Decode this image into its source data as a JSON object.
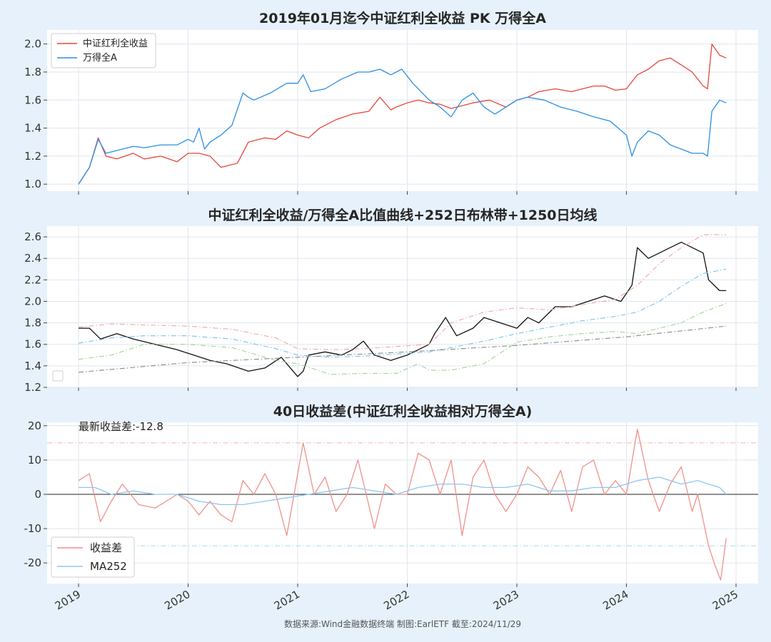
{
  "footer": {
    "source": "数据来源:Wind金融数据终端  制图:EarlETF 截至:2024/11/29"
  },
  "x_axis": {
    "ticks": [
      "2019",
      "2020",
      "2021",
      "2022",
      "2023",
      "2024",
      "2025"
    ]
  },
  "colors": {
    "red": "#e8453c",
    "blue": "#2b8fe3",
    "black": "#111111",
    "band_upper": "#f2a6a6",
    "band_mid": "#7cc0ee",
    "band_lower": "#9fd49a",
    "ma1250": "#888888",
    "diff": "#f0918a",
    "ma252": "#8ac8f0",
    "background": "#e6f1fb"
  },
  "chart_data": [
    {
      "type": "line",
      "title": "2019年01月迄今中证红利全收益 PK 万得全A",
      "xlabel": "",
      "ylabel": "",
      "xlim": [
        2019.0,
        2024.91
      ],
      "ylim": [
        0.95,
        2.1
      ],
      "yticks": [
        "1.0",
        "1.2",
        "1.4",
        "1.6",
        "1.8",
        "2.0"
      ],
      "legend_position": "top-left",
      "grid": true,
      "series": [
        {
          "name": "中证红利全收益",
          "color": "#e8453c",
          "x": [
            2019.0,
            2019.1,
            2019.18,
            2019.25,
            2019.35,
            2019.5,
            2019.6,
            2019.75,
            2019.9,
            2020.0,
            2020.1,
            2020.2,
            2020.3,
            2020.45,
            2020.55,
            2020.7,
            2020.8,
            2020.9,
            2021.0,
            2021.1,
            2021.2,
            2021.35,
            2021.5,
            2021.65,
            2021.75,
            2021.85,
            2021.9,
            2022.0,
            2022.1,
            2022.2,
            2022.3,
            2022.4,
            2022.5,
            2022.6,
            2022.75,
            2022.9,
            2023.0,
            2023.1,
            2023.2,
            2023.35,
            2023.5,
            2023.6,
            2023.7,
            2023.8,
            2023.9,
            2024.0,
            2024.1,
            2024.2,
            2024.3,
            2024.4,
            2024.5,
            2024.6,
            2024.7,
            2024.74,
            2024.78,
            2024.85,
            2024.91
          ],
          "y": [
            1.0,
            1.12,
            1.33,
            1.2,
            1.18,
            1.22,
            1.18,
            1.2,
            1.16,
            1.22,
            1.22,
            1.2,
            1.12,
            1.15,
            1.3,
            1.33,
            1.32,
            1.38,
            1.35,
            1.33,
            1.4,
            1.46,
            1.5,
            1.52,
            1.62,
            1.53,
            1.55,
            1.58,
            1.6,
            1.58,
            1.57,
            1.54,
            1.56,
            1.58,
            1.6,
            1.55,
            1.6,
            1.62,
            1.66,
            1.68,
            1.66,
            1.68,
            1.7,
            1.7,
            1.67,
            1.68,
            1.78,
            1.82,
            1.88,
            1.9,
            1.85,
            1.8,
            1.7,
            1.68,
            2.0,
            1.92,
            1.9
          ]
        },
        {
          "name": "万得全A",
          "color": "#2b8fe3",
          "x": [
            2019.0,
            2019.1,
            2019.18,
            2019.25,
            2019.35,
            2019.5,
            2019.6,
            2019.75,
            2019.9,
            2020.0,
            2020.05,
            2020.1,
            2020.15,
            2020.2,
            2020.3,
            2020.4,
            2020.5,
            2020.55,
            2020.6,
            2020.75,
            2020.9,
            2021.0,
            2021.05,
            2021.12,
            2021.25,
            2021.4,
            2021.55,
            2021.65,
            2021.75,
            2021.85,
            2021.95,
            2022.05,
            2022.2,
            2022.3,
            2022.4,
            2022.5,
            2022.6,
            2022.7,
            2022.8,
            2022.9,
            2023.0,
            2023.1,
            2023.25,
            2023.4,
            2023.55,
            2023.7,
            2023.85,
            2024.0,
            2024.05,
            2024.1,
            2024.2,
            2024.3,
            2024.4,
            2024.5,
            2024.6,
            2024.7,
            2024.74,
            2024.78,
            2024.85,
            2024.91
          ],
          "y": [
            1.0,
            1.12,
            1.32,
            1.22,
            1.24,
            1.27,
            1.26,
            1.28,
            1.28,
            1.32,
            1.3,
            1.4,
            1.25,
            1.3,
            1.35,
            1.42,
            1.65,
            1.62,
            1.6,
            1.65,
            1.72,
            1.72,
            1.78,
            1.66,
            1.68,
            1.75,
            1.8,
            1.8,
            1.82,
            1.78,
            1.82,
            1.72,
            1.6,
            1.55,
            1.48,
            1.6,
            1.65,
            1.55,
            1.5,
            1.55,
            1.6,
            1.62,
            1.6,
            1.55,
            1.52,
            1.48,
            1.45,
            1.35,
            1.2,
            1.3,
            1.38,
            1.35,
            1.28,
            1.25,
            1.22,
            1.22,
            1.2,
            1.52,
            1.6,
            1.58
          ]
        }
      ]
    },
    {
      "type": "line",
      "title": "中证红利全收益/万得全A比值曲线+252日布林带+1250日均线",
      "xlabel": "",
      "ylabel": "",
      "xlim": [
        2019.0,
        2024.91
      ],
      "ylim": [
        1.2,
        2.7
      ],
      "yticks": [
        "1.2",
        "1.4",
        "1.6",
        "1.8",
        "2.0",
        "2.2",
        "2.4",
        "2.6"
      ],
      "legend_position": "bottom-left",
      "grid": true,
      "series": [
        {
          "name": "",
          "color": "#111111",
          "style": "solid",
          "x": [
            2019.0,
            2019.1,
            2019.2,
            2019.35,
            2019.5,
            2019.7,
            2019.9,
            2020.05,
            2020.2,
            2020.35,
            2020.55,
            2020.7,
            2020.85,
            2020.9,
            2021.0,
            2021.05,
            2021.1,
            2021.25,
            2021.4,
            2021.5,
            2021.6,
            2021.7,
            2021.85,
            2022.0,
            2022.1,
            2022.2,
            2022.25,
            2022.35,
            2022.45,
            2022.6,
            2022.7,
            2022.85,
            2023.0,
            2023.1,
            2023.2,
            2023.35,
            2023.5,
            2023.65,
            2023.8,
            2023.95,
            2024.05,
            2024.1,
            2024.2,
            2024.3,
            2024.4,
            2024.5,
            2024.6,
            2024.7,
            2024.75,
            2024.8,
            2024.85,
            2024.91
          ],
          "y": [
            1.75,
            1.75,
            1.65,
            1.7,
            1.65,
            1.6,
            1.55,
            1.5,
            1.45,
            1.42,
            1.35,
            1.38,
            1.48,
            1.42,
            1.3,
            1.35,
            1.5,
            1.53,
            1.5,
            1.55,
            1.63,
            1.5,
            1.45,
            1.5,
            1.55,
            1.6,
            1.7,
            1.85,
            1.68,
            1.75,
            1.85,
            1.8,
            1.75,
            1.85,
            1.8,
            1.95,
            1.95,
            2.0,
            2.05,
            2.0,
            2.15,
            2.5,
            2.4,
            2.45,
            2.5,
            2.55,
            2.5,
            2.45,
            2.2,
            2.15,
            2.1,
            2.1
          ]
        },
        {
          "name": "",
          "color": "#f2a6a6",
          "style": "dashdot",
          "x": [
            2019.0,
            2019.3,
            2019.6,
            2020.0,
            2020.4,
            2020.8,
            2021.0,
            2021.3,
            2021.6,
            2021.9,
            2022.2,
            2022.4,
            2022.7,
            2023.0,
            2023.3,
            2023.6,
            2023.9,
            2024.1,
            2024.3,
            2024.5,
            2024.7,
            2024.91
          ],
          "y": [
            1.76,
            1.79,
            1.78,
            1.77,
            1.74,
            1.66,
            1.56,
            1.55,
            1.56,
            1.58,
            1.6,
            1.8,
            1.9,
            1.94,
            1.92,
            1.97,
            2.02,
            2.15,
            2.35,
            2.5,
            2.62,
            2.62
          ]
        },
        {
          "name": "",
          "color": "#7cc0ee",
          "style": "dashdot",
          "x": [
            2019.0,
            2019.3,
            2019.6,
            2020.0,
            2020.4,
            2020.8,
            2021.0,
            2021.3,
            2021.6,
            2021.9,
            2022.2,
            2022.4,
            2022.7,
            2023.0,
            2023.3,
            2023.6,
            2023.9,
            2024.1,
            2024.3,
            2024.5,
            2024.7,
            2024.91
          ],
          "y": [
            1.61,
            1.66,
            1.68,
            1.68,
            1.65,
            1.56,
            1.5,
            1.48,
            1.49,
            1.51,
            1.53,
            1.57,
            1.63,
            1.7,
            1.76,
            1.82,
            1.86,
            1.9,
            2.0,
            2.14,
            2.26,
            2.3
          ]
        },
        {
          "name": "",
          "color": "#9fd49a",
          "style": "dashdot",
          "x": [
            2019.0,
            2019.3,
            2019.6,
            2020.0,
            2020.4,
            2020.8,
            2021.0,
            2021.3,
            2021.6,
            2021.9,
            2022.1,
            2022.2,
            2022.4,
            2022.7,
            2023.0,
            2023.3,
            2023.6,
            2023.9,
            2024.1,
            2024.3,
            2024.5,
            2024.7,
            2024.91
          ],
          "y": [
            1.46,
            1.5,
            1.6,
            1.6,
            1.57,
            1.45,
            1.42,
            1.32,
            1.33,
            1.33,
            1.42,
            1.36,
            1.36,
            1.42,
            1.62,
            1.67,
            1.7,
            1.72,
            1.7,
            1.75,
            1.8,
            1.9,
            1.98
          ]
        },
        {
          "name": "",
          "color": "#888888",
          "style": "dashdot",
          "x": [
            2019.0,
            2020.0,
            2021.0,
            2022.0,
            2023.0,
            2024.0,
            2024.91
          ],
          "y": [
            1.34,
            1.43,
            1.48,
            1.53,
            1.59,
            1.67,
            1.77
          ]
        }
      ]
    },
    {
      "type": "line",
      "title": "40日收益差(中证红利全收益相对万得全A)",
      "xlabel": "",
      "ylabel": "",
      "xlim": [
        2019.0,
        2024.91
      ],
      "ylim": [
        -26,
        21
      ],
      "yticks": [
        "-20",
        "-10",
        "0",
        "10",
        "20"
      ],
      "reference_lines": {
        "upper": 15,
        "lower": -15,
        "zero": 0
      },
      "annotation": "最新收益差:-12.8",
      "legend_position": "bottom-left",
      "grid": true,
      "series": [
        {
          "name": "收益差",
          "color": "#f0918a",
          "x": [
            2019.0,
            2019.1,
            2019.2,
            2019.3,
            2019.4,
            2019.55,
            2019.7,
            2019.9,
            2020.0,
            2020.1,
            2020.2,
            2020.3,
            2020.4,
            2020.5,
            2020.6,
            2020.7,
            2020.8,
            2020.9,
            2021.05,
            2021.15,
            2021.25,
            2021.35,
            2021.45,
            2021.55,
            2021.7,
            2021.8,
            2021.9,
            2022.0,
            2022.1,
            2022.2,
            2022.3,
            2022.4,
            2022.5,
            2022.6,
            2022.7,
            2022.8,
            2022.9,
            2023.0,
            2023.1,
            2023.2,
            2023.3,
            2023.4,
            2023.5,
            2023.6,
            2023.7,
            2023.8,
            2023.9,
            2024.0,
            2024.1,
            2024.2,
            2024.3,
            2024.4,
            2024.5,
            2024.6,
            2024.65,
            2024.75,
            2024.8,
            2024.86,
            2024.91
          ],
          "y": [
            4,
            6,
            -8,
            -2,
            3,
            -3,
            -4,
            0,
            -2,
            -6,
            -2,
            -6,
            -8,
            4,
            0,
            6,
            0,
            -12,
            15,
            0,
            5,
            -5,
            0,
            10,
            -10,
            3,
            0,
            0,
            12,
            10,
            0,
            10,
            -12,
            5,
            10,
            0,
            -5,
            0,
            8,
            5,
            0,
            7,
            -5,
            8,
            10,
            0,
            4,
            0,
            19,
            4,
            -5,
            3,
            8,
            -5,
            0,
            -15,
            -20,
            -25,
            -12.8
          ]
        },
        {
          "name": "MA252",
          "color": "#8ac8f0",
          "x": [
            2019.0,
            2019.15,
            2019.3,
            2019.5,
            2019.7,
            2019.9,
            2020.1,
            2020.3,
            2020.5,
            2020.7,
            2020.9,
            2021.1,
            2021.3,
            2021.5,
            2021.7,
            2021.9,
            2022.1,
            2022.3,
            2022.5,
            2022.7,
            2022.9,
            2023.1,
            2023.3,
            2023.5,
            2023.7,
            2023.9,
            2024.1,
            2024.3,
            2024.5,
            2024.65,
            2024.75,
            2024.85,
            2024.91
          ],
          "y": [
            2,
            2,
            0,
            1,
            0,
            0,
            -2,
            -3,
            -3,
            -2,
            -1,
            0,
            1,
            2,
            1,
            0,
            2,
            3,
            3,
            2,
            2,
            3,
            1,
            1,
            2,
            2,
            4,
            5,
            3,
            4,
            3,
            2,
            0
          ]
        }
      ]
    }
  ]
}
